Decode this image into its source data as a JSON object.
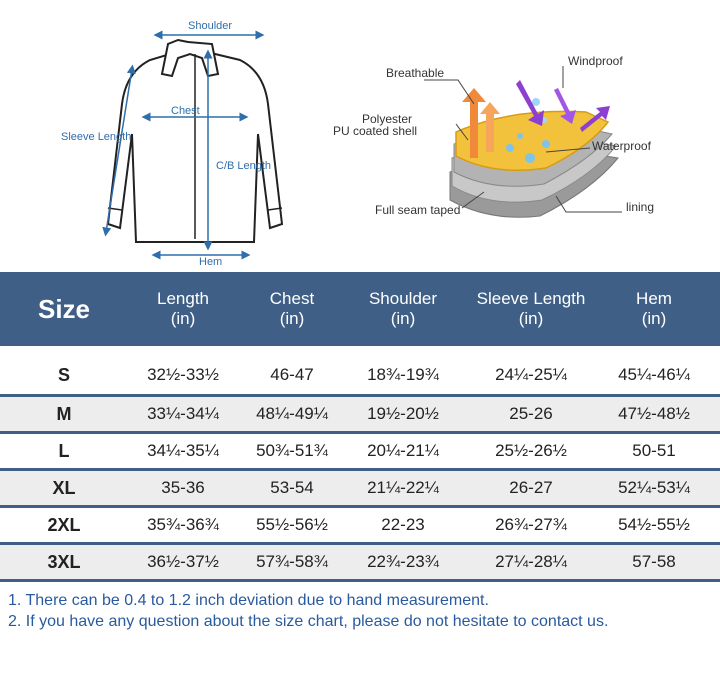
{
  "diagram": {
    "shirt_labels": {
      "shoulder": "Shoulder",
      "chest": "Chest",
      "sleeve_length": "Sleeve Length",
      "cb_length": "C/B Length",
      "hem": "Hem"
    },
    "fabric_labels": {
      "breathable": "Breathable",
      "windproof": "Windproof",
      "shell_line1": "Polyester",
      "shell_line2": "PU coated shell",
      "waterproof": "Waterproof",
      "seam": "Full seam taped",
      "lining": "lining"
    }
  },
  "table": {
    "headers": [
      {
        "line1": "Size",
        "line2": ""
      },
      {
        "line1": "Length",
        "line2": "(in)"
      },
      {
        "line1": "Chest",
        "line2": "(in)"
      },
      {
        "line1": "Shoulder",
        "line2": "(in)"
      },
      {
        "line1": "Sleeve Length",
        "line2": "(in)"
      },
      {
        "line1": "Hem",
        "line2": "(in)"
      }
    ],
    "rows": [
      [
        "S",
        "32½-33½",
        "46-47",
        "18¾-19¾",
        "24¼-25¼",
        "45¼-46¼"
      ],
      [
        "M",
        "33¼-34¼",
        "48¼-49¼",
        "19½-20½",
        "25-26",
        "47½-48½"
      ],
      [
        "L",
        "34¼-35¼",
        "50¾-51¾",
        "20¼-21¼",
        "25½-26½",
        "50-51"
      ],
      [
        "XL",
        "35-36",
        "53-54",
        "21¼-22¼",
        "26-27",
        "52¼-53¼"
      ],
      [
        "2XL",
        "35¾-36¾",
        "55½-56½",
        "22-23",
        "26¾-27¾",
        "54½-55½"
      ],
      [
        "3XL",
        "36½-37½",
        "57¾-58¾",
        "22¾-23¾",
        "27¼-28¼",
        "57-58"
      ]
    ]
  },
  "notes": [
    "1. There can be 0.4 to 1.2 inch deviation due to hand measurement.",
    "2. If you have any question about the size chart, please do not hesitate to contact us."
  ],
  "colors": {
    "header_bg": "#3f5f86",
    "measure_blue": "#2f6eaa",
    "note_blue": "#2a5a9e",
    "row_alt": "#ededed"
  }
}
